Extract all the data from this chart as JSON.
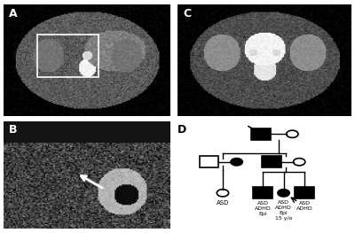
{
  "background_color": "#ffffff",
  "panel_labels": [
    "A",
    "B",
    "C",
    "D"
  ],
  "panel_label_fontsize": 9,
  "panel_label_weight": "bold",
  "ct_image_color": "#aaaaaa",
  "text_color": "#222222"
}
